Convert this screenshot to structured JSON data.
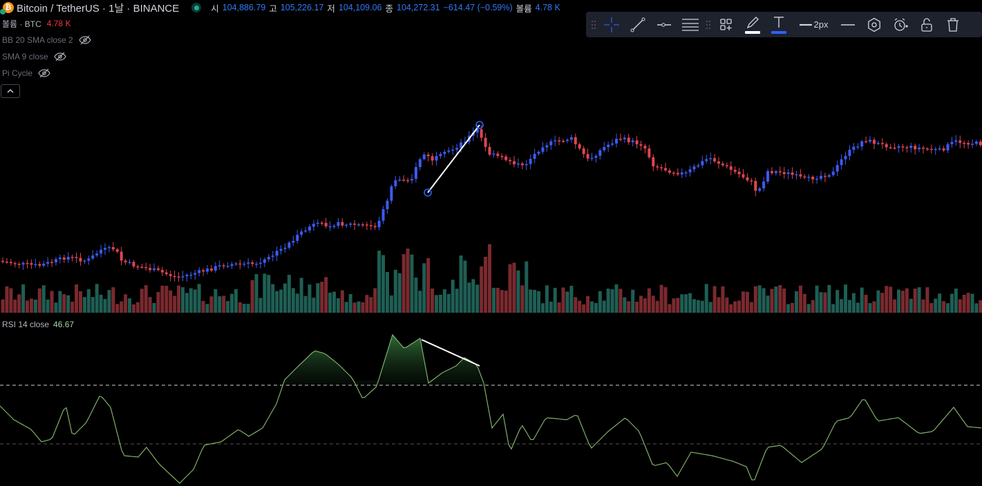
{
  "header": {
    "symbol_title": "Bitcoin / TetherUS · 1날 · BINANCE",
    "ohlc": [
      {
        "label": "시",
        "value": "104,886.79"
      },
      {
        "label": "고",
        "value": "105,226.17"
      },
      {
        "label": "저",
        "value": "104,109.06"
      },
      {
        "label": "종",
        "value": "104,272.31"
      },
      {
        "label": "",
        "value": "−614.47 (−0.59%)"
      },
      {
        "label": "볼륨",
        "value": "4.78 K"
      }
    ]
  },
  "indicators": {
    "volume": {
      "label": "볼륨 · BTC",
      "value": "4.78 K"
    },
    "bb": {
      "label": "BB 20 SMA close 2"
    },
    "sma": {
      "label": "SMA 9 close"
    },
    "pi": {
      "label": "Pi Cycle"
    }
  },
  "rsi": {
    "label": "RSI 14 close",
    "value": "46.67"
  },
  "toolbar": {
    "line_width_label": "2px",
    "icons": [
      "drag-handle-icon",
      "crosshair-icon",
      "trend-line-icon",
      "horizontal-ray-icon",
      "fib-lines-icon",
      "drag-handle-icon",
      "templates-icon",
      "pencil-color-icon",
      "text-color-icon",
      "line-width-icon",
      "line-style-icon",
      "settings-hexagon-icon",
      "alert-add-icon",
      "lock-icon",
      "trash-icon"
    ]
  },
  "colors": {
    "up": "#3d5af1",
    "down": "#e04451",
    "vol_up": "#1f5e54",
    "vol_down": "#7a2a2f",
    "rsi_line": "#7fb069",
    "background": "#000000",
    "toolbar_bg": "#1e222d",
    "highlight": "#2962ff"
  }
}
